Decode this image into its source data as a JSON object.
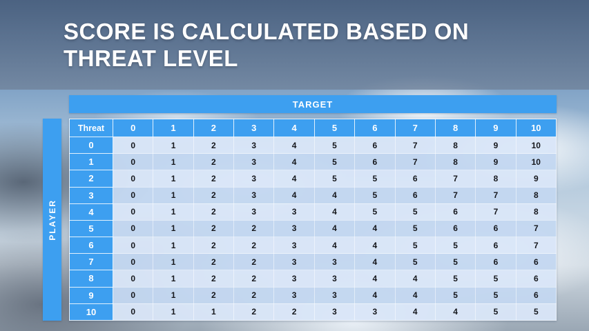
{
  "slide": {
    "title_lines": [
      "SCORE IS CALCULATED BASED ON",
      "THREAT LEVEL"
    ]
  },
  "table": {
    "target_label": "TARGET",
    "player_label": "PLAYER",
    "corner_label": "Threat",
    "col_headers": [
      "0",
      "1",
      "2",
      "3",
      "4",
      "5",
      "6",
      "7",
      "8",
      "9",
      "10"
    ],
    "rows": [
      {
        "threat": "0",
        "values": [
          0,
          1,
          2,
          3,
          4,
          5,
          6,
          7,
          8,
          9,
          10
        ]
      },
      {
        "threat": "1",
        "values": [
          0,
          1,
          2,
          3,
          4,
          5,
          6,
          7,
          8,
          9,
          10
        ]
      },
      {
        "threat": "2",
        "values": [
          0,
          1,
          2,
          3,
          4,
          5,
          5,
          6,
          7,
          8,
          9
        ]
      },
      {
        "threat": "3",
        "values": [
          0,
          1,
          2,
          3,
          4,
          4,
          5,
          6,
          7,
          7,
          8
        ]
      },
      {
        "threat": "4",
        "values": [
          0,
          1,
          2,
          3,
          3,
          4,
          5,
          5,
          6,
          7,
          8
        ]
      },
      {
        "threat": "5",
        "values": [
          0,
          1,
          2,
          2,
          3,
          4,
          4,
          5,
          6,
          6,
          7
        ]
      },
      {
        "threat": "6",
        "values": [
          0,
          1,
          2,
          2,
          3,
          4,
          4,
          5,
          5,
          6,
          7
        ]
      },
      {
        "threat": "7",
        "values": [
          0,
          1,
          2,
          2,
          3,
          3,
          4,
          5,
          5,
          6,
          6
        ]
      },
      {
        "threat": "8",
        "values": [
          0,
          1,
          2,
          2,
          3,
          3,
          4,
          4,
          5,
          5,
          6
        ]
      },
      {
        "threat": "9",
        "values": [
          0,
          1,
          2,
          2,
          3,
          3,
          4,
          4,
          5,
          5,
          6
        ]
      },
      {
        "threat": "10",
        "values": [
          0,
          1,
          1,
          2,
          2,
          3,
          3,
          4,
          4,
          5,
          5
        ]
      }
    ]
  },
  "colors": {
    "accent_blue": "#3D9FF0",
    "row_band_light": "#D9E6F8",
    "row_band_dark": "#C3D7F0",
    "title_text": "#FFFFFF",
    "cell_text": "#15171C"
  }
}
